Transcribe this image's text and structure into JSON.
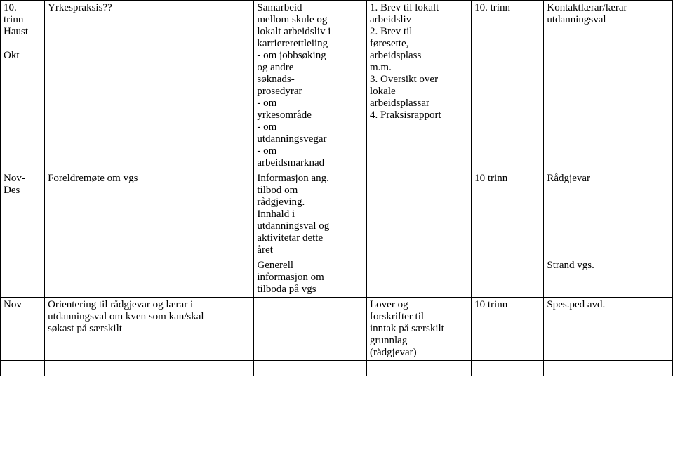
{
  "rows": {
    "r1": {
      "col1a": "10.",
      "col1b": "trinn",
      "col1c": "Haust",
      "col1d": "Okt",
      "col2": "Yrkespraksis??",
      "col3a": "Samarbeid",
      "col3b": "mellom skule og",
      "col3c": "lokalt arbeidsliv i",
      "col3d": "karriererettleiing",
      "col3e": "- om jobbsøking",
      "col3f": "og andre",
      "col3g": "søknads-",
      "col3h": "prosedyrar",
      "col3i": "- om",
      "col3j": "yrkesområde",
      "col3k": "- om",
      "col3l": "utdanningsvegar",
      "col3m": "-  om",
      "col3n": "arbeidsmarknad",
      "col4a": "1. Brev til lokalt",
      "col4b": "arbeidsliv",
      "col4c": "2. Brev til",
      "col4d": "føresette,",
      "col4e": "arbeidsplass",
      "col4f": "m.m.",
      "col4g": "3. Oversikt over",
      "col4h": "lokale",
      "col4i": "arbeidsplassar",
      "col4j": "4. Praksisrapport",
      "col5": "10. trinn",
      "col6a": "Kontaktlærar/lærar",
      "col6b": "utdanningsval"
    },
    "r2": {
      "col1a": "Nov-",
      "col1b": "Des",
      "col2": "Foreldremøte om vgs",
      "col3a": "Informasjon ang.",
      "col3b": "tilbod om",
      "col3c": "rådgjeving.",
      "col3d": "Innhald i",
      "col3e": "utdanningsval og",
      "col3f": "aktivitetar dette",
      "col3g": "året",
      "col5": "10 trinn",
      "col6": "Rådgjevar"
    },
    "r3": {
      "col3a": "Generell",
      "col3b": "informasjon om",
      "col3c": "tilboda på vgs",
      "col6": "Strand vgs."
    },
    "r4": {
      "col1": "Nov",
      "col2a": "Orientering til rådgjevar og lærar i",
      "col2b": "utdanningsval om kven som kan/skal",
      "col2c": "søkast på særskilt",
      "col4a": "Lover og",
      "col4b": "forskrifter til",
      "col4c": "inntak på særskilt",
      "col4d": "grunnlag",
      "col4e": "(rådgjevar)",
      "col5": "10 trinn",
      "col6": "Spes.ped avd."
    }
  }
}
